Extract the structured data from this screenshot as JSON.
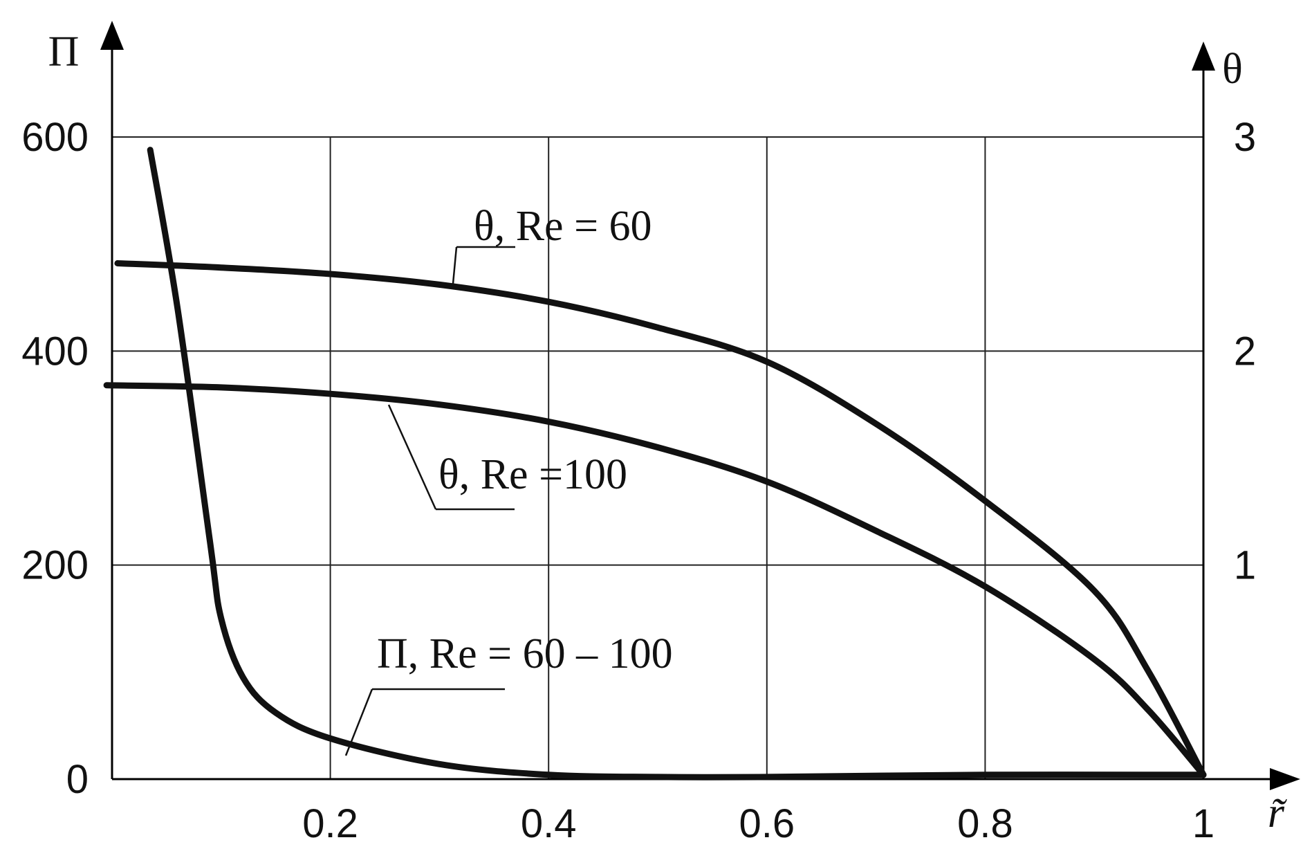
{
  "chart_data": {
    "type": "line",
    "xlabel": "r̃",
    "ylabel_left": "Π",
    "ylabel_right": "θ",
    "xlim": [
      0,
      1
    ],
    "ylim_left": [
      0,
      600
    ],
    "ylim_right": [
      0,
      3
    ],
    "x_ticks": [
      "0.2",
      "0.4",
      "0.6",
      "0.8",
      "1"
    ],
    "x_tick_values": [
      0.2,
      0.4,
      0.6,
      0.8,
      1
    ],
    "y_left_ticks": [
      "0",
      "200",
      "400",
      "600"
    ],
    "y_left_tick_values": [
      0,
      200,
      400,
      600
    ],
    "y_right_ticks": [
      "1",
      "2",
      "3"
    ],
    "y_right_tick_values": [
      1,
      2,
      3
    ],
    "grid": true,
    "series": [
      {
        "name": "θ, Re = 60",
        "axis": "right",
        "x": [
          0.005,
          0.1,
          0.2,
          0.3,
          0.4,
          0.5,
          0.6,
          0.7,
          0.8,
          0.9,
          0.95,
          1.0
        ],
        "y": [
          2.41,
          2.39,
          2.36,
          2.31,
          2.23,
          2.11,
          1.95,
          1.66,
          1.3,
          0.88,
          0.5,
          0.02
        ]
      },
      {
        "name": "θ, Re =100",
        "axis": "right",
        "x": [
          -0.005,
          0.1,
          0.2,
          0.3,
          0.4,
          0.5,
          0.6,
          0.7,
          0.8,
          0.9,
          0.95,
          1.0
        ],
        "y": [
          1.84,
          1.83,
          1.8,
          1.75,
          1.67,
          1.55,
          1.39,
          1.16,
          0.9,
          0.56,
          0.32,
          0.02
        ]
      },
      {
        "name": "Π, Re = 60 – 100",
        "axis": "left",
        "x": [
          0.035,
          0.06,
          0.09,
          0.1,
          0.12,
          0.15,
          0.2,
          0.3,
          0.4,
          0.5,
          0.6,
          0.8,
          1.0
        ],
        "y": [
          588,
          440,
          220,
          150,
          95,
          62,
          38,
          14,
          4,
          2,
          2,
          4,
          4
        ]
      }
    ],
    "annotations": [
      {
        "text": "θ, Re = 60",
        "series": 0
      },
      {
        "text": "θ, Re =100",
        "series": 1
      },
      {
        "text": "Π, Re = 60 – 100",
        "series": 2
      }
    ]
  }
}
